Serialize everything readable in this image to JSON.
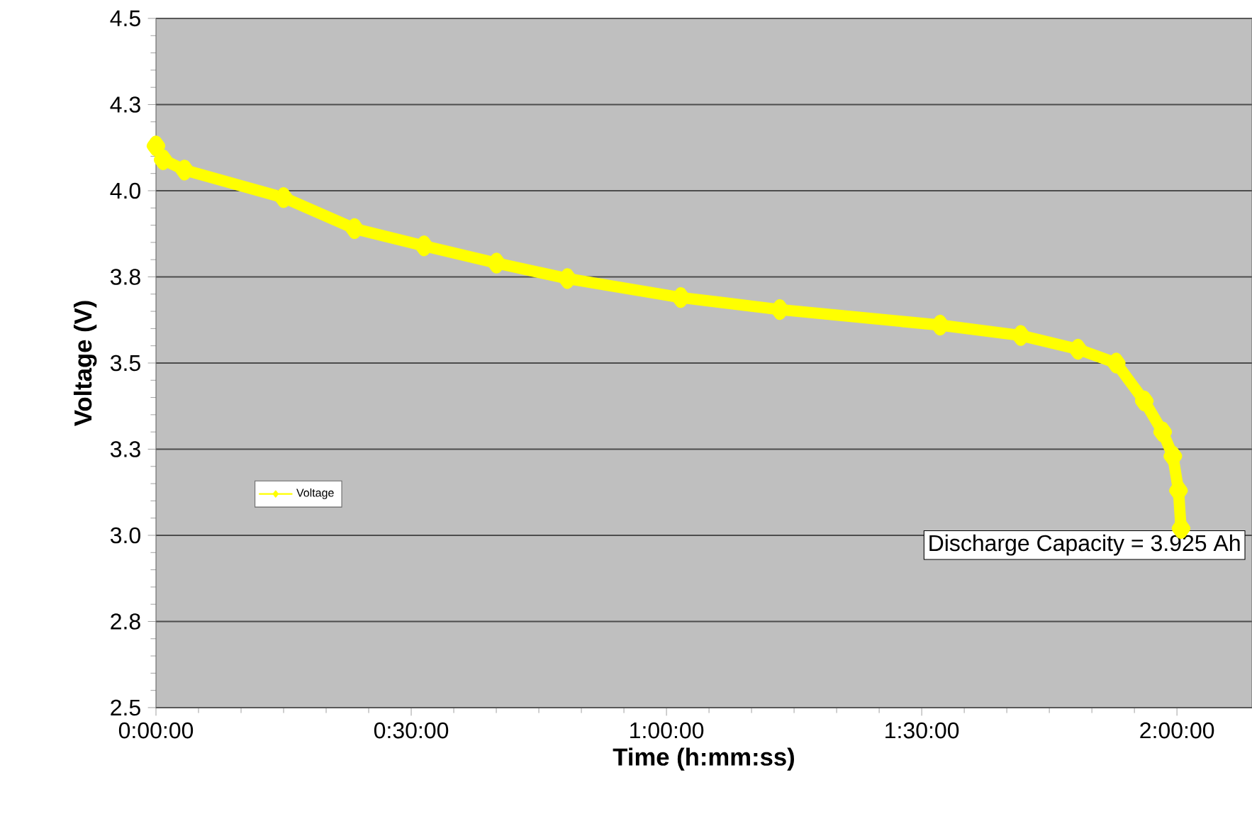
{
  "chart_data": {
    "type": "line",
    "xlabel": "Time (h:mm:ss)",
    "ylabel": "Voltage (V)",
    "x": [
      0,
      0.014,
      0.056,
      0.25,
      0.389,
      0.525,
      0.667,
      0.806,
      1.028,
      1.222,
      1.536,
      1.694,
      1.806,
      1.881,
      1.936,
      1.972,
      1.992,
      2.003,
      2.008
    ],
    "series": [
      {
        "name": "Voltage",
        "color": "#ffff00",
        "values": [
          4.13,
          4.09,
          4.06,
          3.98,
          3.89,
          3.84,
          3.79,
          3.745,
          3.69,
          3.655,
          3.61,
          3.58,
          3.54,
          3.5,
          3.39,
          3.3,
          3.23,
          3.13,
          3.02
        ]
      }
    ],
    "xlim": [
      0,
      2.147
    ],
    "ylim": [
      2.5,
      4.5
    ],
    "xticks": [
      {
        "value": 0,
        "label": "0:00:00"
      },
      {
        "value": 0.5,
        "label": "0:30:00"
      },
      {
        "value": 1,
        "label": "1:00:00"
      },
      {
        "value": 1.5,
        "label": "1:30:00"
      },
      {
        "value": 2,
        "label": "2:00:00"
      }
    ],
    "yticks": [
      {
        "value": 2.5,
        "label": "2.5"
      },
      {
        "value": 2.75,
        "label": "2.8"
      },
      {
        "value": 3.0,
        "label": "3.0"
      },
      {
        "value": 3.25,
        "label": "3.3"
      },
      {
        "value": 3.5,
        "label": "3.5"
      },
      {
        "value": 3.75,
        "label": "3.8"
      },
      {
        "value": 4.0,
        "label": "4.0"
      },
      {
        "value": 4.25,
        "label": "4.3"
      },
      {
        "value": 4.5,
        "label": "4.5"
      }
    ],
    "annotations": [
      {
        "text": "Discharge Capacity = 3.925 Ah",
        "x": 2.008,
        "y": 3.02
      }
    ],
    "grid": "y",
    "legend": "left",
    "marker": "diamond",
    "line_style": "solid"
  }
}
